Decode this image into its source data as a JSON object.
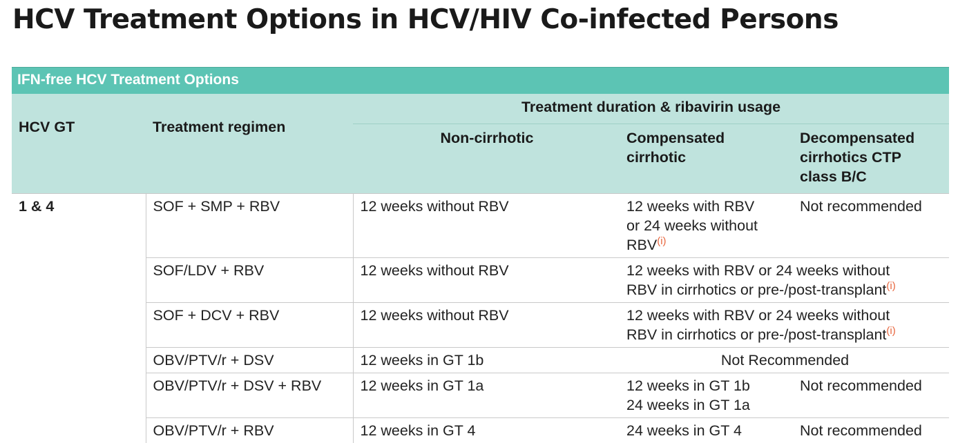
{
  "page": {
    "title": "HCV Treatment Options in HCV/HIV Co-infected Persons"
  },
  "table": {
    "caption": "IFN-free HCV Treatment Options",
    "headers": {
      "gt": "HCV GT",
      "regimen": "Treatment regimen",
      "duration": "Treatment duration & ribavirin usage",
      "non_cirrhotic": "Non-cirrhotic",
      "compensated": [
        "Compensated",
        "cirrhotic"
      ],
      "decompensated": [
        "Decompensated",
        "cirrhotics CTP",
        "class B/C"
      ]
    },
    "gt_value": "1 & 4",
    "footnote_mark": "(i)",
    "rows": [
      {
        "regimen": "SOF + SMP + RBV",
        "non": "12 weeks without RBV",
        "comp": [
          "12 weeks with RBV",
          "or 24 weeks without",
          "RBV"
        ],
        "dec": "Not recommended"
      },
      {
        "regimen": "SOF/LDV + RBV",
        "non": "12 weeks without RBV",
        "merged": [
          "12 weeks with RBV or 24 weeks without",
          "RBV in cirrhotics or pre-/post-transplant"
        ]
      },
      {
        "regimen": "SOF + DCV + RBV",
        "non": "12 weeks without RBV",
        "merged": [
          "12 weeks with RBV or 24 weeks without",
          "RBV in cirrhotics or pre-/post-transplant"
        ]
      },
      {
        "regimen": "OBV/PTV/r + DSV",
        "non": "12 weeks in GT 1b",
        "merged_center": "Not Recommended"
      },
      {
        "regimen": "OBV/PTV/r + DSV + RBV",
        "non": "12 weeks in GT 1a",
        "comp": [
          "12 weeks in GT 1b",
          "24 weeks in GT 1a"
        ],
        "dec": "Not recommended"
      },
      {
        "regimen": "OBV/PTV/r + RBV",
        "non": "12 weeks in GT 4",
        "comp": [
          "24 weeks in GT 4"
        ],
        "dec": "Not recommended"
      }
    ]
  }
}
